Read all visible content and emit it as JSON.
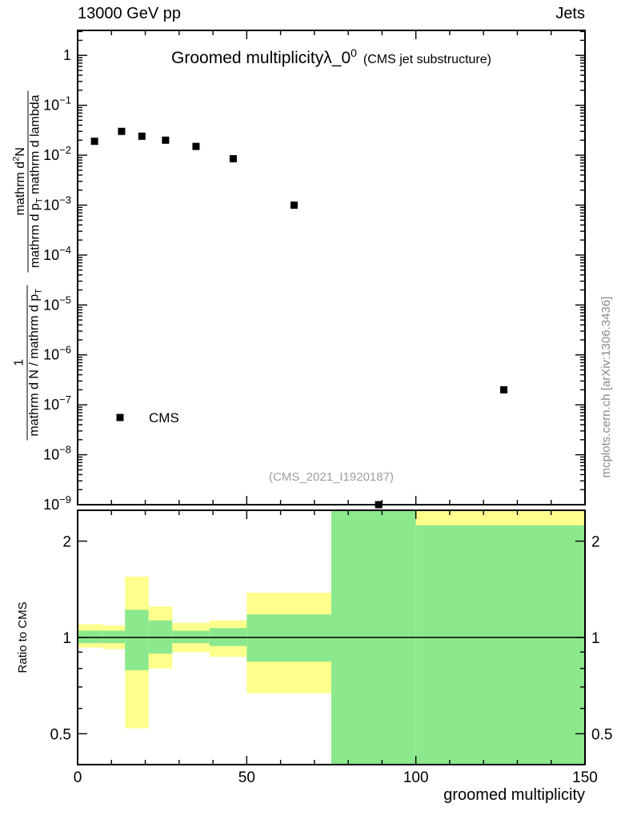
{
  "header": {
    "left": "13000 GeV pp",
    "right": "Jets"
  },
  "main_plot": {
    "title": {
      "main": "Groomed multiplicity",
      "lambda": "λ",
      "sub": "_0",
      "sup": "0",
      "suffix": "(CMS jet substructure)"
    },
    "ylabel": {
      "f1num": "1",
      "f1den": "mathrm d N / mathrm d p",
      "f1densub": "T",
      "f2num_a": "mathrm d",
      "f2num_sup": "2",
      "f2num_b": "N",
      "f2den_a": "mathrm d p",
      "f2den_sub": "T",
      "f2den_b": " mathrm d lambda"
    },
    "legend": {
      "label": "CMS"
    },
    "watermark": "(CMS_2021_I1920187)",
    "y_tick_exponents": [
      0,
      -1,
      -2,
      -3,
      -4,
      -5,
      -6,
      -7,
      -8,
      -9
    ]
  },
  "ratio_plot": {
    "ylabel": "Ratio to CMS",
    "y_ticks": [
      "2",
      "1",
      "0.5"
    ],
    "y_tick_values": [
      2,
      1,
      0.5
    ],
    "y_minor_ticks": [
      0.6,
      0.7,
      0.8,
      0.9
    ],
    "x_ticks": [
      0,
      50,
      100,
      150
    ]
  },
  "xlabel": "groomed multiplicity",
  "credit": "mcplots.cern.ch [arXiv:1306.3436]",
  "colors": {
    "band_yellow": "#ffff8d",
    "band_green": "#8ce88c",
    "marker": "#000000",
    "watermark": "#9e9e9e",
    "credit": "#8a8a8a"
  },
  "chart_data": [
    {
      "type": "scatter",
      "title": "Groomed multiplicity λ_0^0 (CMS jet substructure)",
      "xlabel": "groomed multiplicity",
      "ylabel": "1/(dN/dp_T) d^2N/(dp_T dlambda)",
      "xlim": [
        0,
        150
      ],
      "yscale": "log",
      "ylim": [
        1e-09,
        3.16
      ],
      "grid": false,
      "legend_position": "lower-left",
      "watermark": "(CMS_2021_I1920187)",
      "series": [
        {
          "name": "CMS",
          "marker": "filled-square",
          "color": "#000000",
          "x": [
            5,
            13,
            19,
            26,
            35,
            46,
            64,
            89,
            126
          ],
          "y": [
            0.019,
            0.03,
            0.024,
            0.02,
            0.015,
            0.0085,
            0.001,
            1e-09,
            2e-07
          ]
        }
      ]
    },
    {
      "type": "area",
      "subtitle": "Ratio to CMS",
      "xlim": [
        0,
        150
      ],
      "ylim": [
        0.4,
        2.49
      ],
      "yscale": "log",
      "reference_line": 1.0,
      "band_colors": {
        "outer": "#ffff8d",
        "inner": "#8ce88c"
      },
      "bands": [
        {
          "x": [
            0,
            7.5
          ],
          "yellow": [
            0.93,
            1.1
          ],
          "green": [
            0.96,
            1.05
          ]
        },
        {
          "x": [
            7.5,
            14
          ],
          "yellow": [
            0.92,
            1.09
          ],
          "green": [
            0.96,
            1.05
          ]
        },
        {
          "x": [
            14,
            21
          ],
          "yellow": [
            0.52,
            1.55
          ],
          "green": [
            0.79,
            1.22
          ]
        },
        {
          "x": [
            21,
            28
          ],
          "yellow": [
            0.8,
            1.25
          ],
          "green": [
            0.89,
            1.13
          ]
        },
        {
          "x": [
            28,
            39
          ],
          "yellow": [
            0.9,
            1.11
          ],
          "green": [
            0.96,
            1.05
          ]
        },
        {
          "x": [
            39,
            50
          ],
          "yellow": [
            0.87,
            1.13
          ],
          "green": [
            0.94,
            1.07
          ]
        },
        {
          "x": [
            50,
            75
          ],
          "yellow": [
            0.67,
            1.38
          ],
          "green": [
            0.84,
            1.18
          ]
        },
        {
          "x": [
            75,
            100
          ],
          "yellow": [
            0.4,
            2.49
          ],
          "green": [
            0.4,
            2.49
          ]
        },
        {
          "x": [
            100,
            150
          ],
          "yellow": [
            0.4,
            2.49
          ],
          "green": [
            0.4,
            2.24
          ]
        }
      ]
    }
  ]
}
